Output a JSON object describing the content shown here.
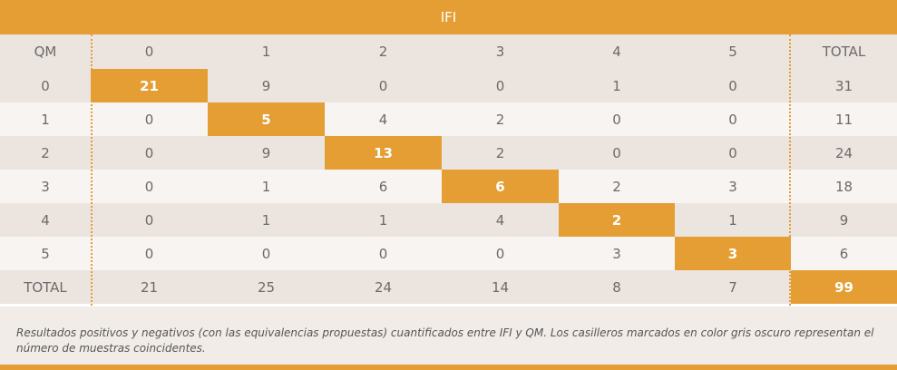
{
  "title": "IFI",
  "header": [
    "QM",
    "0",
    "1",
    "2",
    "3",
    "4",
    "5",
    "TOTAL"
  ],
  "rows": [
    {
      "label": "0",
      "values": [
        "21",
        "9",
        "0",
        "0",
        "1",
        "0"
      ],
      "total": "31",
      "highlight": 0
    },
    {
      "label": "1",
      "values": [
        "0",
        "5",
        "4",
        "2",
        "0",
        "0"
      ],
      "total": "11",
      "highlight": 1
    },
    {
      "label": "2",
      "values": [
        "0",
        "9",
        "13",
        "2",
        "0",
        "0"
      ],
      "total": "24",
      "highlight": 2
    },
    {
      "label": "3",
      "values": [
        "0",
        "1",
        "6",
        "6",
        "2",
        "3"
      ],
      "total": "18",
      "highlight": 3
    },
    {
      "label": "4",
      "values": [
        "0",
        "1",
        "1",
        "4",
        "2",
        "1"
      ],
      "total": "9",
      "highlight": 4
    },
    {
      "label": "5",
      "values": [
        "0",
        "0",
        "0",
        "0",
        "3",
        "3"
      ],
      "total": "6",
      "highlight": 5
    }
  ],
  "totals": {
    "label": "TOTAL",
    "values": [
      "21",
      "25",
      "24",
      "14",
      "8",
      "7"
    ],
    "grand_total": "99"
  },
  "caption": "Resultados positivos y negativos (con las equivalencias propuestas) cuantificados entre IFI y QM. Los casilleros marcados en color gris oscuro representan el número de muestras coincidentes.",
  "colors": {
    "accent": "#e49e34",
    "row_dark": "#ece4df",
    "row_light": "#f7f4f2",
    "footer": "#f1ece8"
  }
}
